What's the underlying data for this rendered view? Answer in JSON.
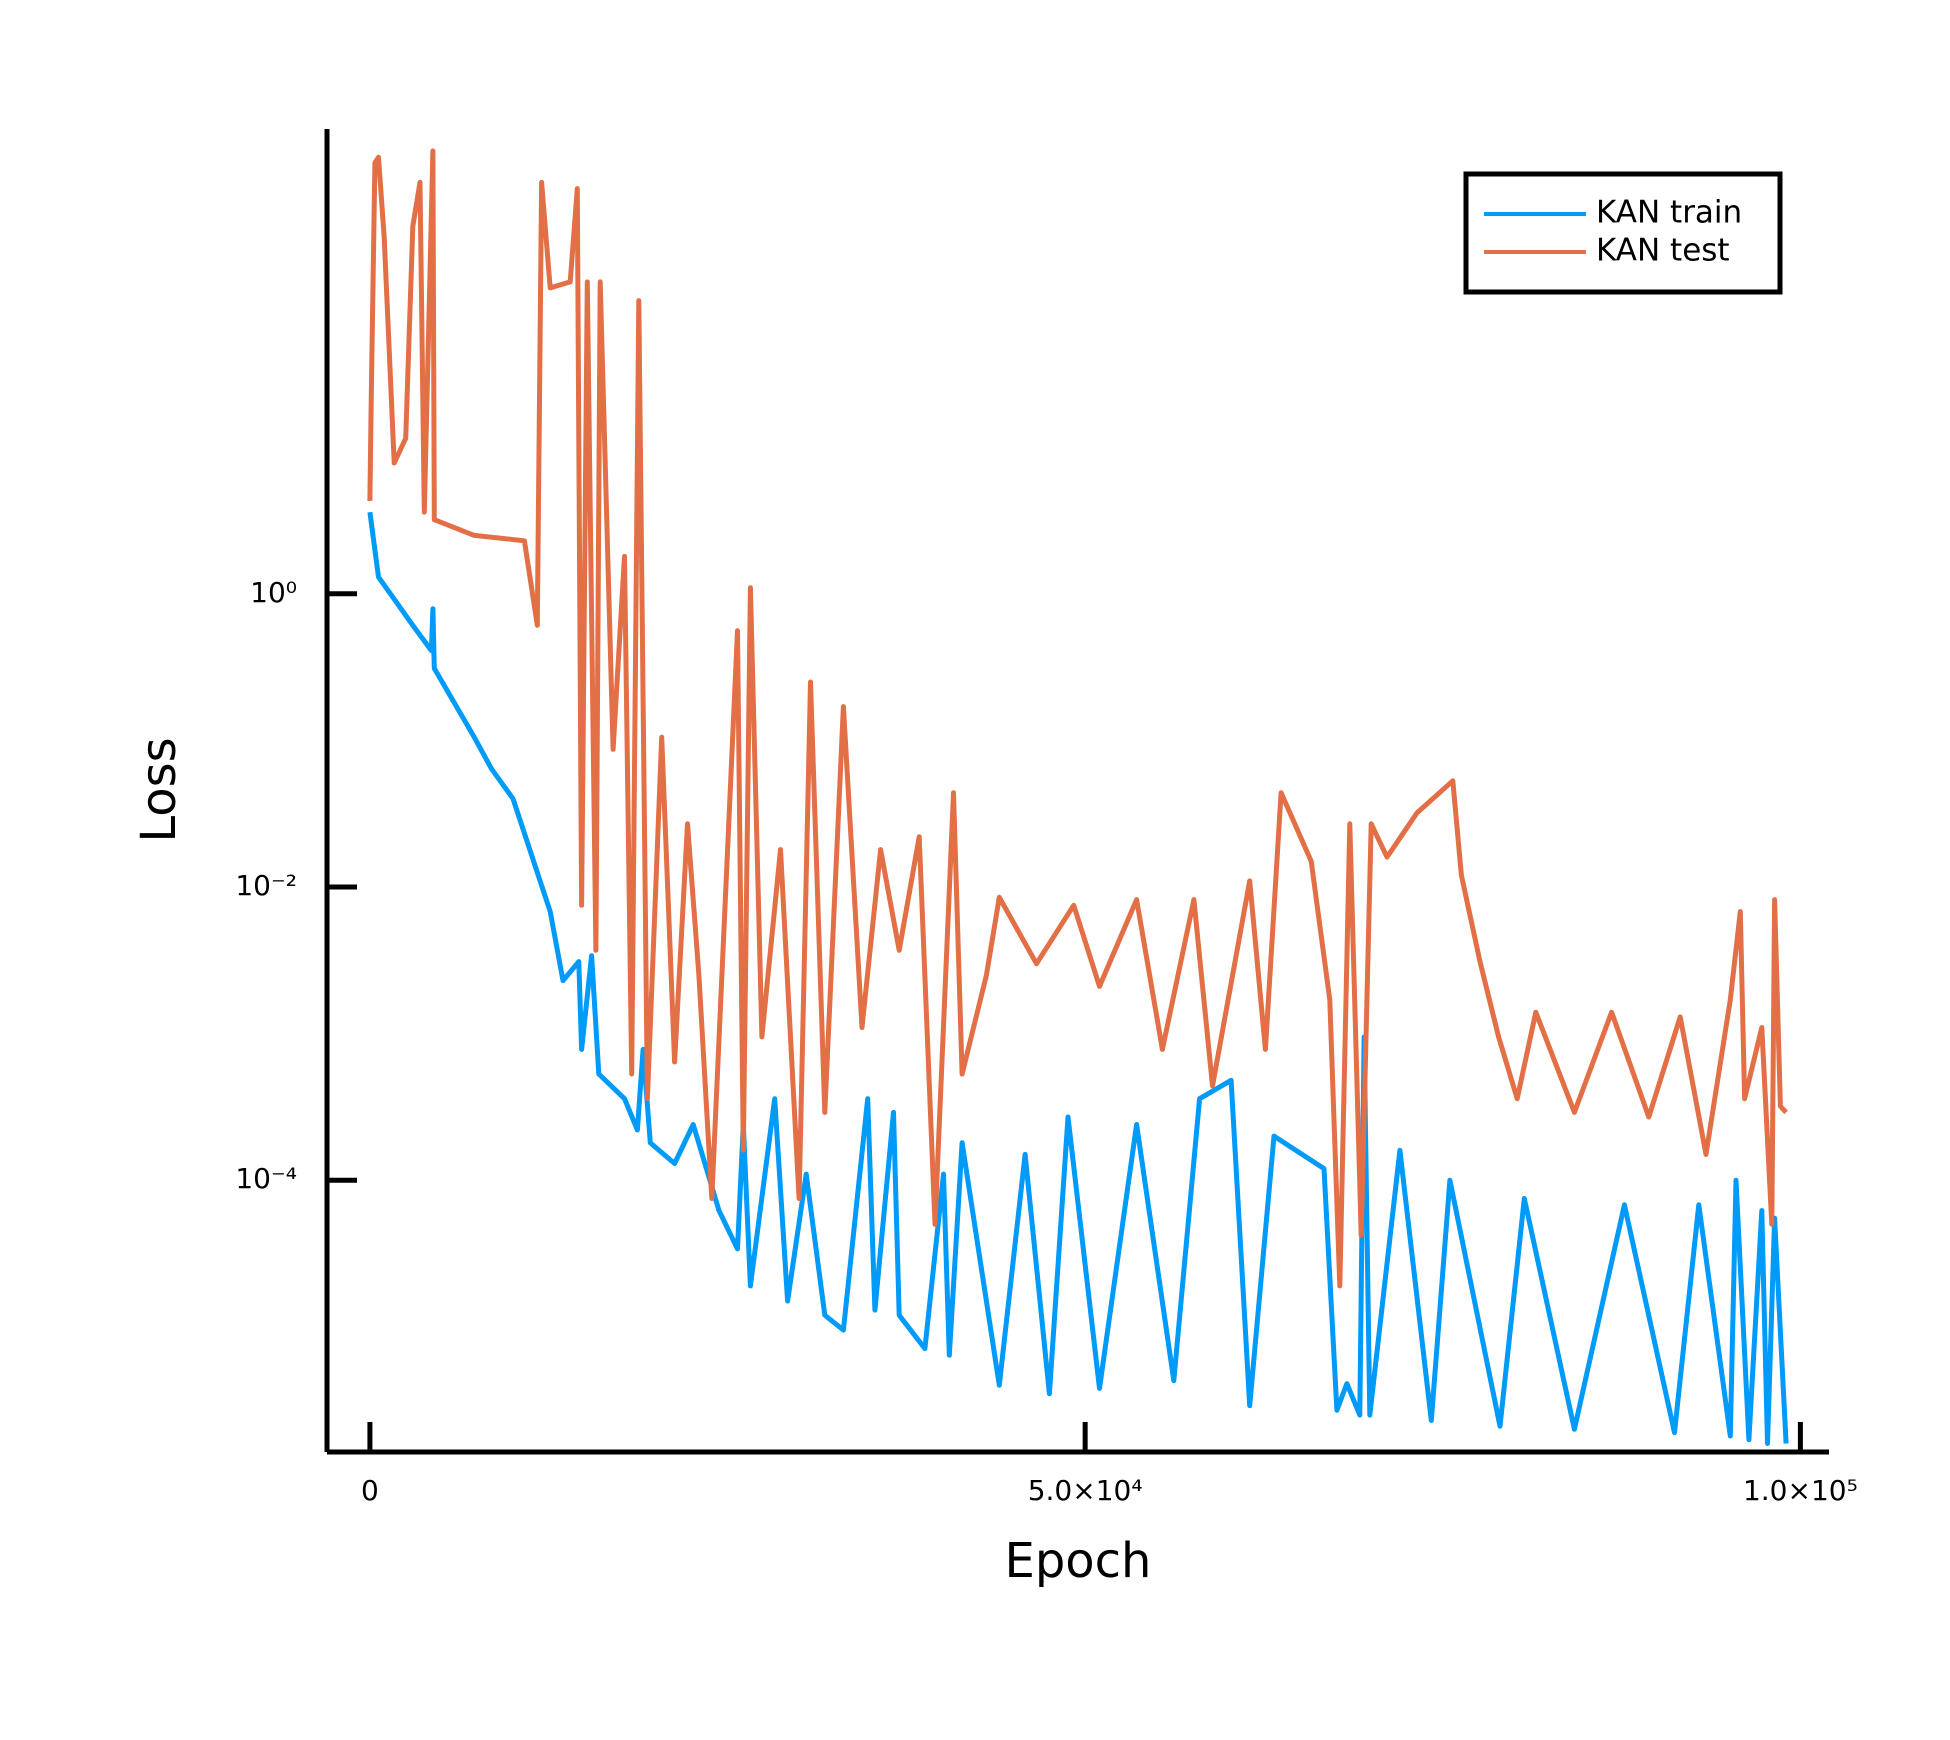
{
  "chart_data": {
    "type": "line",
    "x_label": "Epoch",
    "y_label": "Loss",
    "yscale": "log",
    "grid": false,
    "legend": "top-right",
    "xlim": [
      -3000,
      102000
    ],
    "ylim": [
      1.4e-06,
      1480
    ],
    "xticks": [
      0,
      {
        "value": 50000,
        "label": "5.0×10⁴"
      },
      {
        "value": 100000,
        "label": "1.0×10⁵"
      }
    ],
    "yticks": [
      {
        "value": 1,
        "label": "10⁰"
      },
      {
        "value": 0.01,
        "label": "10⁻²"
      },
      {
        "value": 0.0001,
        "label": "10⁻⁴"
      }
    ],
    "series": [
      {
        "name": "KAN train",
        "color": "#009af9",
        "x": [
          0,
          600,
          3000,
          4300,
          4400,
          4500,
          7300,
          8500,
          10000,
          12600,
          13500,
          14600,
          14800,
          15500,
          16000,
          17800,
          18700,
          19100,
          19600,
          21300,
          22600,
          24400,
          25700,
          26100,
          26600,
          28300,
          29200,
          30500,
          31800,
          33100,
          34800,
          35300,
          36600,
          37000,
          38800,
          40100,
          40500,
          41400,
          44000,
          45800,
          47500,
          48800,
          51000,
          53600,
          56200,
          58000,
          60200,
          61500,
          63200,
          66700,
          67600,
          68300,
          69200,
          69500,
          69900,
          72000,
          74200,
          75500,
          79000,
          80700,
          84200,
          87700,
          91200,
          92900,
          95100,
          95500,
          96400,
          97300,
          97700,
          98200,
          99000
        ],
        "values": [
          3.6,
          1.3,
          0.61,
          0.41,
          0.79,
          0.31,
          0.105,
          0.064,
          0.04,
          0.0068,
          0.0023,
          0.0031,
          0.00078,
          0.0034,
          0.00053,
          0.00036,
          0.00022,
          0.00078,
          0.00018,
          0.00013,
          0.00024,
          6.2e-05,
          3.4e-05,
          0.00024,
          1.9e-05,
          0.00036,
          1.5e-05,
          0.00011,
          1.2e-05,
          9.5e-06,
          0.00036,
          1.3e-05,
          0.00029,
          1.2e-05,
          7.1e-06,
          0.00011,
          6.4e-06,
          0.00018,
          4e-06,
          0.00015,
          3.5e-06,
          0.00027,
          3.8e-06,
          0.00024,
          4.3e-06,
          0.00036,
          0.00048,
          2.9e-06,
          0.0002,
          0.00012,
          2.7e-06,
          4.1e-06,
          2.5e-06,
          0.00095,
          2.5e-06,
          0.00016,
          2.3e-06,
          0.0001,
          2.1e-06,
          7.5e-05,
          2e-06,
          6.8e-05,
          1.9e-06,
          6.8e-05,
          1.8e-06,
          0.0001,
          1.7e-06,
          6.2e-05,
          1.6e-06,
          5.5e-05,
          1.6e-06
        ]
      },
      {
        "name": "KAN test",
        "color": "#e26f46",
        "x": [
          0,
          100,
          350,
          600,
          1000,
          1700,
          2500,
          3000,
          3500,
          3800,
          4400,
          4500,
          7300,
          10800,
          11700,
          12000,
          12600,
          14000,
          14500,
          14800,
          15200,
          15800,
          16100,
          17000,
          17800,
          18300,
          18800,
          19400,
          20400,
          21300,
          22200,
          23000,
          23900,
          25700,
          26100,
          26600,
          27400,
          28700,
          30000,
          30800,
          31800,
          33100,
          34400,
          35700,
          37000,
          38400,
          39500,
          40800,
          41400,
          43100,
          44000,
          46600,
          49200,
          51000,
          53600,
          55400,
          57600,
          58900,
          61500,
          62600,
          63700,
          65800,
          67100,
          67800,
          68500,
          69300,
          70000,
          71100,
          73200,
          75700,
          76300,
          77600,
          78900,
          80200,
          81500,
          84200,
          86800,
          89400,
          91600,
          93400,
          95100,
          95800,
          96100,
          97300,
          98000,
          98200,
          98600,
          99000
        ],
        "values": [
          4.3,
          23,
          870,
          950,
          270,
          7.8,
          11.5,
          320,
          640,
          3.6,
          1050,
          3.2,
          2.5,
          2.3,
          0.61,
          640,
          122,
          134,
          580,
          0.0075,
          134,
          0.0037,
          134,
          0.087,
          1.8,
          0.00053,
          100,
          0.00036,
          0.105,
          0.00064,
          0.027,
          0.0025,
          7.5e-05,
          0.56,
          0.00016,
          1.1,
          0.00095,
          0.018,
          7.5e-05,
          0.25,
          0.00029,
          0.17,
          0.0011,
          0.018,
          0.0037,
          0.022,
          5e-05,
          0.044,
          0.00053,
          0.0025,
          0.0085,
          0.003,
          0.0075,
          0.0021,
          0.0082,
          0.00078,
          0.0082,
          0.00044,
          0.011,
          0.00078,
          0.044,
          0.015,
          0.0017,
          1.9e-05,
          0.027,
          4.2e-05,
          0.027,
          0.016,
          0.032,
          0.053,
          0.012,
          0.0031,
          0.00095,
          0.00036,
          0.0014,
          0.00029,
          0.0014,
          0.00027,
          0.0013,
          0.00015,
          0.0017,
          0.0068,
          0.00036,
          0.0011,
          5e-05,
          0.0082,
          0.00032,
          0.00029
        ]
      }
    ]
  }
}
